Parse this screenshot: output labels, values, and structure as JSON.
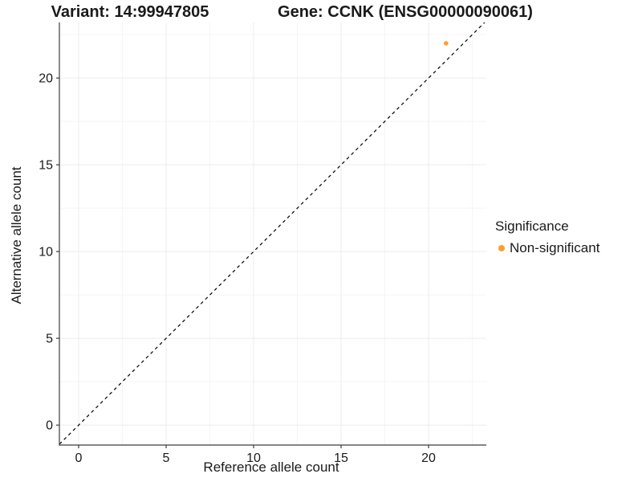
{
  "titles": {
    "variant": "Variant: 14:99947805",
    "gene": "Gene: CCNK (ENSG00000090061)"
  },
  "axes": {
    "x": {
      "label": "Reference allele count",
      "ticks": [
        0,
        5,
        10,
        15,
        20
      ]
    },
    "y": {
      "label": "Alternative allele count",
      "ticks": [
        0,
        5,
        10,
        15,
        20
      ]
    }
  },
  "legend": {
    "title": "Significance",
    "items": [
      {
        "label": "Non-significant",
        "color": "#FF9E2B"
      }
    ]
  },
  "colors": {
    "background": "#ffffff",
    "axis_line": "#3c3c3c",
    "grid_major": "#ececec",
    "grid_minor": "#f5f5f5",
    "tick_text": "#1a1a1a",
    "point_orange": "#FF9E2B",
    "reference_line": "#000000"
  },
  "chart_data": {
    "type": "scatter",
    "title": "Variant: 14:99947805 | Gene: CCNK (ENSG00000090061)",
    "xlabel": "Reference allele count",
    "ylabel": "Alternative allele count",
    "xlim": [
      -1.1,
      23.3
    ],
    "ylim": [
      -1.15,
      23.2
    ],
    "x_ticks": [
      0,
      5,
      10,
      15,
      20
    ],
    "y_ticks": [
      0,
      5,
      10,
      15,
      20
    ],
    "x_minor_ticks": [
      2.5,
      7.5,
      12.5,
      17.5,
      22.5
    ],
    "y_minor_ticks": [
      2.5,
      7.5,
      12.5,
      17.5,
      22.5
    ],
    "grid": true,
    "legend_position": "right",
    "series": [
      {
        "name": "Non-significant",
        "color": "#FF9E2B",
        "points": [
          {
            "x": 21,
            "y": 22
          }
        ]
      }
    ],
    "reference_line": {
      "type": "identity y=x",
      "style": "dashed",
      "color": "#000000"
    }
  }
}
